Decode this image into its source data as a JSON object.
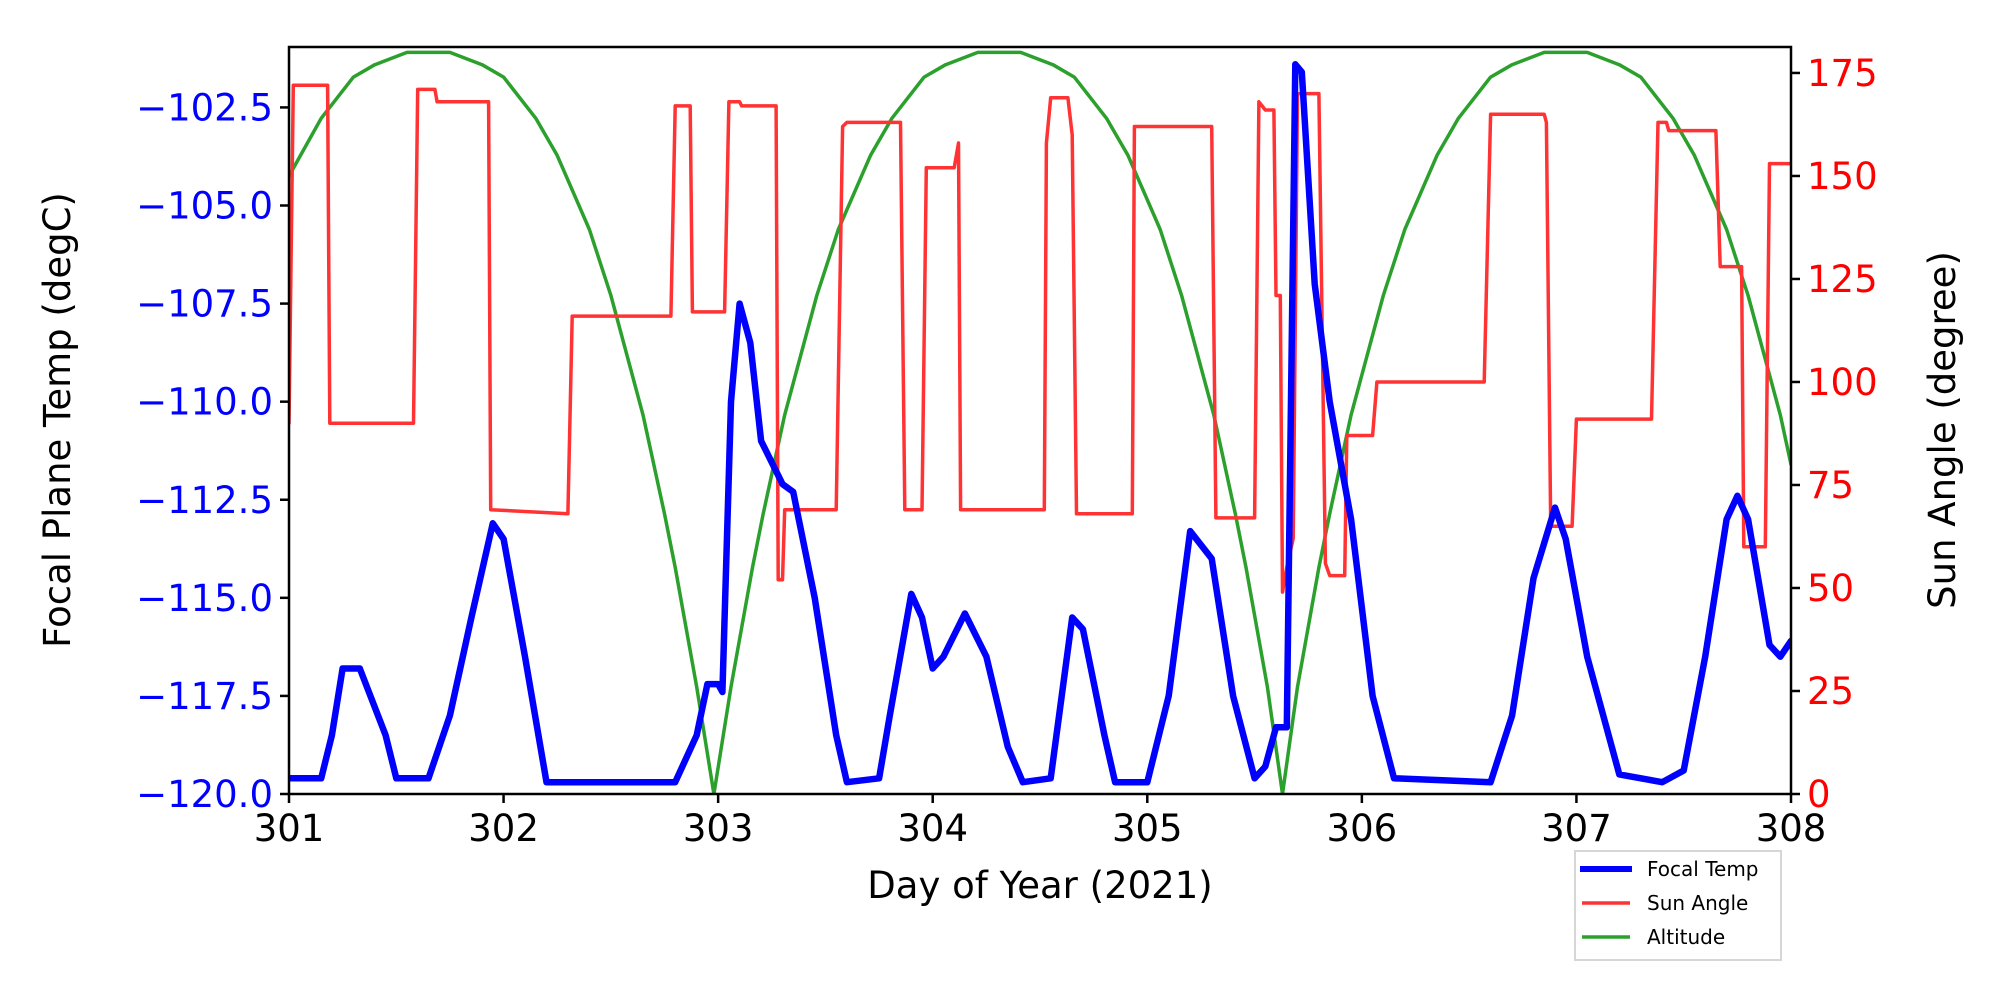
{
  "chart_data": {
    "type": "line",
    "xlabel": "Day of Year (2021)",
    "ylabel_left": "Focal Plane Temp (degC)",
    "ylabel_right": "Sun Angle (degree)",
    "xlim": [
      301,
      308
    ],
    "ylim_left": [
      -120,
      -100.96
    ],
    "ylim_right": [
      0,
      181.3
    ],
    "x_ticks": [
      301,
      302,
      303,
      304,
      305,
      306,
      307,
      308
    ],
    "x_tick_labels": [
      "301",
      "302",
      "303",
      "304",
      "305",
      "306",
      "307",
      "308"
    ],
    "left_ticks": [
      -120,
      -117.5,
      -115,
      -112.5,
      -110,
      -107.5,
      -105,
      -102.5
    ],
    "left_tick_labels": [
      "−120.0",
      "−117.5",
      "−115.0",
      "−112.5",
      "−110.0",
      "−107.5",
      "−105.0",
      "−102.5"
    ],
    "right_ticks": [
      0,
      25,
      50,
      75,
      100,
      125,
      150,
      175
    ],
    "right_tick_labels": [
      "0",
      "25",
      "50",
      "75",
      "100",
      "125",
      "150",
      "175"
    ],
    "colors": {
      "left_axis": "#0000ff",
      "right_axis": "#ff0000",
      "focal": "#0000ff",
      "sun": "#ff3333",
      "altitude": "#2ca02c"
    },
    "legend": {
      "placement": "below-right",
      "entries": [
        "Focal Temp",
        "Sun Angle",
        "Altitude"
      ]
    },
    "series": [
      {
        "name": "Focal Temp",
        "axis": "left",
        "x": [
          301.0,
          301.15,
          301.2,
          301.25,
          301.33,
          301.45,
          301.5,
          301.65,
          301.75,
          301.85,
          301.95,
          302.0,
          302.1,
          302.2,
          302.5,
          302.8,
          302.9,
          302.95,
          303.0,
          303.02,
          303.06,
          303.1,
          303.15,
          303.2,
          303.3,
          303.35,
          303.45,
          303.55,
          303.6,
          303.75,
          303.8,
          303.9,
          303.95,
          304.0,
          304.05,
          304.15,
          304.25,
          304.35,
          304.42,
          304.55,
          304.65,
          304.7,
          304.8,
          304.85,
          305.0,
          305.1,
          305.2,
          305.3,
          305.4,
          305.5,
          305.55,
          305.6,
          305.65,
          305.69,
          305.72,
          305.78,
          305.85,
          305.95,
          306.05,
          306.15,
          306.6,
          306.7,
          306.8,
          306.9,
          306.95,
          307.05,
          307.2,
          307.4,
          307.5,
          307.6,
          307.7,
          307.75,
          307.8,
          307.9,
          307.95,
          308.0
        ],
        "y": [
          -119.6,
          -119.6,
          -118.5,
          -116.8,
          -116.8,
          -118.5,
          -119.6,
          -119.6,
          -118,
          -115.5,
          -113.1,
          -113.5,
          -116.5,
          -119.7,
          -119.7,
          -119.7,
          -118.5,
          -117.2,
          -117.2,
          -117.4,
          -110,
          -107.5,
          -108.5,
          -111,
          -112.1,
          -112.3,
          -115,
          -118.5,
          -119.7,
          -119.6,
          -118,
          -114.9,
          -115.5,
          -116.8,
          -116.5,
          -115.4,
          -116.5,
          -118.8,
          -119.7,
          -119.6,
          -115.5,
          -115.8,
          -118.5,
          -119.7,
          -119.7,
          -117.5,
          -113.3,
          -114,
          -117.5,
          -119.6,
          -119.3,
          -118.3,
          -118.3,
          -101.4,
          -101.6,
          -107,
          -110,
          -113,
          -117.5,
          -119.6,
          -119.7,
          -118,
          -114.5,
          -112.7,
          -113.5,
          -116.5,
          -119.5,
          -119.7,
          -119.4,
          -116.5,
          -113,
          -112.4,
          -113,
          -116.2,
          -116.5,
          -116.1
        ]
      },
      {
        "name": "Sun Angle",
        "axis": "right",
        "x": [
          301.0,
          301.02,
          301.18,
          301.19,
          301.58,
          301.6,
          301.68,
          301.69,
          301.93,
          301.94,
          302.3,
          302.32,
          302.78,
          302.8,
          302.87,
          302.88,
          303.03,
          303.05,
          303.1,
          303.11,
          303.27,
          303.28,
          303.3,
          303.31,
          303.55,
          303.58,
          303.6,
          303.85,
          303.87,
          303.95,
          303.97,
          304.1,
          304.12,
          304.13,
          304.52,
          304.53,
          304.55,
          304.63,
          304.65,
          304.67,
          304.93,
          304.94,
          305.3,
          305.32,
          305.5,
          305.52,
          305.55,
          305.59,
          305.6,
          305.62,
          305.63,
          305.65,
          305.68,
          305.7,
          305.8,
          305.83,
          305.85,
          305.92,
          305.93,
          306.05,
          306.07,
          306.57,
          306.6,
          306.85,
          306.86,
          306.88,
          306.98,
          307.0,
          307.35,
          307.38,
          307.42,
          307.43,
          307.65,
          307.67,
          307.77,
          307.78,
          307.88,
          307.9,
          308.0
        ],
        "y": [
          90,
          172,
          172,
          90,
          90,
          171,
          171,
          168,
          168,
          69,
          68,
          116,
          116,
          167,
          167,
          117,
          117,
          168,
          168,
          167,
          167,
          52,
          52,
          69,
          69,
          162,
          163,
          163,
          69,
          69,
          152,
          152,
          158,
          69,
          69,
          158,
          169,
          169,
          160,
          68,
          68,
          162,
          162,
          67,
          67,
          168,
          166,
          166,
          121,
          121,
          49,
          55,
          62,
          170,
          170,
          56,
          53,
          53,
          87,
          87,
          100,
          100,
          165,
          165,
          163,
          65,
          65,
          91,
          91,
          163,
          163,
          161,
          161,
          128,
          128,
          60,
          60,
          153,
          153
        ]
      },
      {
        "name": "Altitude",
        "axis": "right",
        "x": [
          301.0,
          301.15,
          301.3,
          301.4,
          301.55,
          301.65,
          301.75,
          301.9,
          302.0,
          302.15,
          302.25,
          302.4,
          302.5,
          302.65,
          302.75,
          302.8,
          302.9,
          302.98,
          303.06,
          303.16,
          303.21,
          303.31,
          303.46,
          303.56,
          303.71,
          303.81,
          303.96,
          304.06,
          304.21,
          304.31,
          304.41,
          304.56,
          304.66,
          304.81,
          304.91,
          305.06,
          305.16,
          305.31,
          305.41,
          305.46,
          305.56,
          305.63,
          305.7,
          305.8,
          305.85,
          305.95,
          306.1,
          306.2,
          306.35,
          306.45,
          306.6,
          306.7,
          306.85,
          306.95,
          307.05,
          307.2,
          307.3,
          307.45,
          307.55,
          307.7,
          307.8,
          307.95,
          308.0
        ],
        "y": [
          150,
          164,
          174,
          177,
          180,
          180,
          180,
          177,
          174,
          164,
          155,
          137,
          121,
          92,
          68,
          55,
          26,
          0,
          26,
          55,
          68,
          92,
          121,
          137,
          155,
          164,
          174,
          177,
          180,
          180,
          180,
          177,
          174,
          164,
          155,
          137,
          121,
          92,
          68,
          55,
          26,
          0,
          26,
          55,
          68,
          92,
          121,
          137,
          155,
          164,
          174,
          177,
          180,
          180,
          180,
          177,
          174,
          164,
          155,
          137,
          121,
          92,
          80
        ]
      }
    ]
  }
}
